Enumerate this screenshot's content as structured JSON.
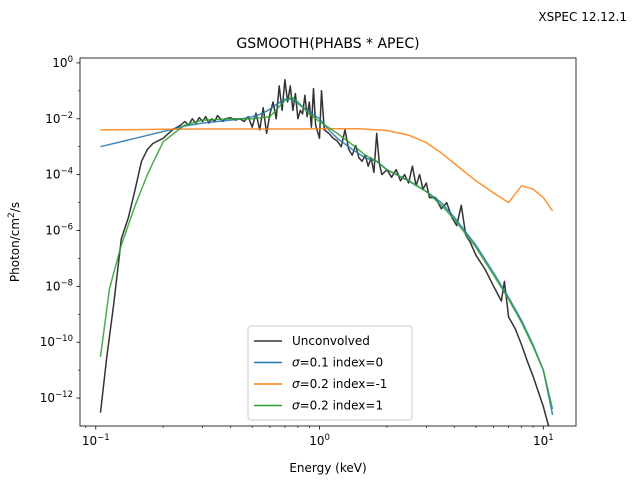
{
  "corner_label": "XSPEC 12.12.1",
  "chart_data": {
    "type": "line",
    "title": "GSMOOTH(PHABS * APEC)",
    "xlabel": "Energy (keV)",
    "ylabel_main": "Photon/cm",
    "ylabel_sup": "2",
    "ylabel_tail": "/s",
    "xscale": "log",
    "yscale": "log",
    "xlim": [
      0.085,
      14.0
    ],
    "ylim": [
      1e-13,
      1.5
    ],
    "grid": false,
    "legend_position": "bottom-center",
    "x_ticks": [
      {
        "value": 0.1,
        "base": "10",
        "exp": "−1"
      },
      {
        "value": 1,
        "base": "10",
        "exp": "0"
      },
      {
        "value": 10,
        "base": "10",
        "exp": "1"
      }
    ],
    "y_ticks": [
      {
        "value": 1,
        "base": "10",
        "exp": "0"
      },
      {
        "value": 0.01,
        "base": "10",
        "exp": "−2"
      },
      {
        "value": 0.0001,
        "base": "10",
        "exp": "−4"
      },
      {
        "value": 1e-06,
        "base": "10",
        "exp": "−6"
      },
      {
        "value": 1e-08,
        "base": "10",
        "exp": "−8"
      },
      {
        "value": 1e-10,
        "base": "10",
        "exp": "−10"
      },
      {
        "value": 1e-12,
        "base": "10",
        "exp": "−12"
      }
    ],
    "legend": [
      {
        "label": "Unconvolved",
        "sigma": false
      },
      {
        "label_prefix": "σ",
        "label_rest": "=0.1 index=0",
        "sigma": true
      },
      {
        "label_prefix": "σ",
        "label_rest": "=0.2 index=-1",
        "sigma": true
      },
      {
        "label_prefix": "σ",
        "label_rest": "=0.2 index=1",
        "sigma": true
      }
    ],
    "series": [
      {
        "name": "Unconvolved",
        "color": "#333333",
        "x": [
          0.105,
          0.112,
          0.12,
          0.13,
          0.14,
          0.15,
          0.16,
          0.17,
          0.18,
          0.2,
          0.22,
          0.24,
          0.25,
          0.26,
          0.27,
          0.28,
          0.29,
          0.3,
          0.31,
          0.32,
          0.33,
          0.34,
          0.35,
          0.37,
          0.38,
          0.4,
          0.42,
          0.44,
          0.46,
          0.48,
          0.5,
          0.52,
          0.54,
          0.56,
          0.58,
          0.6,
          0.62,
          0.64,
          0.66,
          0.68,
          0.7,
          0.72,
          0.74,
          0.76,
          0.78,
          0.8,
          0.82,
          0.84,
          0.86,
          0.88,
          0.9,
          0.92,
          0.94,
          0.96,
          1.0,
          1.02,
          1.05,
          1.1,
          1.15,
          1.2,
          1.25,
          1.3,
          1.35,
          1.4,
          1.45,
          1.5,
          1.55,
          1.6,
          1.65,
          1.7,
          1.75,
          1.8,
          1.85,
          1.9,
          2.0,
          2.1,
          2.2,
          2.3,
          2.4,
          2.5,
          2.6,
          2.7,
          2.8,
          2.9,
          3.0,
          3.1,
          3.3,
          3.5,
          3.7,
          3.9,
          4.1,
          4.3,
          4.5,
          4.7,
          5.0,
          5.5,
          6.0,
          6.5,
          6.7,
          7.0,
          7.5,
          8.0,
          8.5,
          9.0,
          10.0,
          11.0
        ],
        "y": [
          3e-13,
          3e-11,
          2e-09,
          5e-07,
          3e-06,
          3e-05,
          0.0003,
          0.0008,
          0.0013,
          0.002,
          0.004,
          0.006,
          0.008,
          0.006,
          0.01,
          0.007,
          0.011,
          0.008,
          0.012,
          0.007,
          0.01,
          0.008,
          0.013,
          0.008,
          0.01,
          0.011,
          0.009,
          0.01,
          0.008,
          0.012,
          0.005,
          0.016,
          0.004,
          0.025,
          0.003,
          0.015,
          0.04,
          0.01,
          0.15,
          0.02,
          0.25,
          0.04,
          0.15,
          0.02,
          0.08,
          0.01,
          0.02,
          0.015,
          0.07,
          0.012,
          0.04,
          0.005,
          0.12,
          0.006,
          0.002,
          0.1,
          0.004,
          0.003,
          0.002,
          0.0016,
          0.001,
          0.004,
          0.0008,
          0.0005,
          0.0011,
          0.0004,
          0.0003,
          0.0005,
          0.0002,
          0.0004,
          0.00012,
          0.003,
          0.00025,
          0.0001,
          0.00015,
          8e-05,
          0.00015,
          6e-05,
          0.0001,
          5e-05,
          0.0002,
          4e-05,
          0.0001,
          3e-05,
          5e-05,
          1.5e-05,
          1.5e-05,
          6e-06,
          1e-05,
          3e-06,
          1.5e-06,
          8e-06,
          7e-07,
          4e-07,
          1.3e-07,
          4e-08,
          1e-08,
          3e-09,
          1.5e-08,
          8e-10,
          3e-10,
          8e-11,
          2e-11,
          6e-12,
          5e-13,
          3e-14
        ]
      },
      {
        "name": "σ=0.1 index=0",
        "color": "#1f77b4",
        "x": [
          0.105,
          0.15,
          0.2,
          0.25,
          0.3,
          0.35,
          0.4,
          0.45,
          0.5,
          0.55,
          0.6,
          0.65,
          0.7,
          0.75,
          0.8,
          0.9,
          1.0,
          1.1,
          1.2,
          1.4,
          1.6,
          1.8,
          2.0,
          2.5,
          3.0,
          3.5,
          4.0,
          5.0,
          6.0,
          7.0,
          8.0,
          9.0,
          10.0,
          11.0
        ],
        "y": [
          0.001,
          0.002,
          0.0035,
          0.0055,
          0.007,
          0.008,
          0.009,
          0.01,
          0.012,
          0.015,
          0.022,
          0.035,
          0.05,
          0.05,
          0.035,
          0.018,
          0.01,
          0.004,
          0.002,
          0.0008,
          0.0004,
          0.0003,
          0.00015,
          6e-05,
          2.5e-05,
          1e-05,
          3e-06,
          3e-07,
          3e-08,
          4e-09,
          6e-10,
          8e-11,
          1e-11,
          2.5e-13
        ]
      },
      {
        "name": "σ=0.2 index=-1",
        "color": "#ff7f0e",
        "x": [
          0.105,
          0.15,
          0.2,
          0.3,
          0.5,
          0.8,
          1.0,
          1.5,
          2.0,
          2.5,
          3.0,
          3.5,
          4.0,
          5.0,
          6.0,
          7.0,
          8.0,
          9.0,
          10.0,
          11.0
        ],
        "y": [
          0.004,
          0.0041,
          0.0042,
          0.0043,
          0.0043,
          0.0043,
          0.0044,
          0.0044,
          0.0038,
          0.0026,
          0.0014,
          0.0006,
          0.00025,
          6e-05,
          2.2e-05,
          1e-05,
          4e-05,
          3e-05,
          1.5e-05,
          5e-06
        ]
      },
      {
        "name": "σ=0.2 index=1",
        "color": "#2ca02c",
        "x": [
          0.105,
          0.115,
          0.13,
          0.15,
          0.17,
          0.2,
          0.25,
          0.3,
          0.4,
          0.5,
          0.6,
          0.7,
          0.75,
          0.8,
          0.9,
          1.0,
          1.2,
          1.4,
          1.6,
          1.8,
          2.0,
          2.5,
          3.0,
          3.5,
          4.0,
          5.0,
          6.0,
          7.0,
          8.0,
          9.0,
          10.0,
          11.0
        ],
        "y": [
          3e-11,
          8e-09,
          3e-07,
          8e-06,
          0.0001,
          0.0015,
          0.006,
          0.009,
          0.01,
          0.01,
          0.012,
          0.045,
          0.06,
          0.04,
          0.015,
          0.008,
          0.003,
          0.0012,
          0.0005,
          0.0003,
          0.00015,
          6e-05,
          2.5e-05,
          8e-06,
          2.5e-06,
          2.5e-07,
          2.5e-08,
          3.5e-09,
          5e-10,
          7e-11,
          1e-11,
          4e-13
        ]
      }
    ]
  }
}
